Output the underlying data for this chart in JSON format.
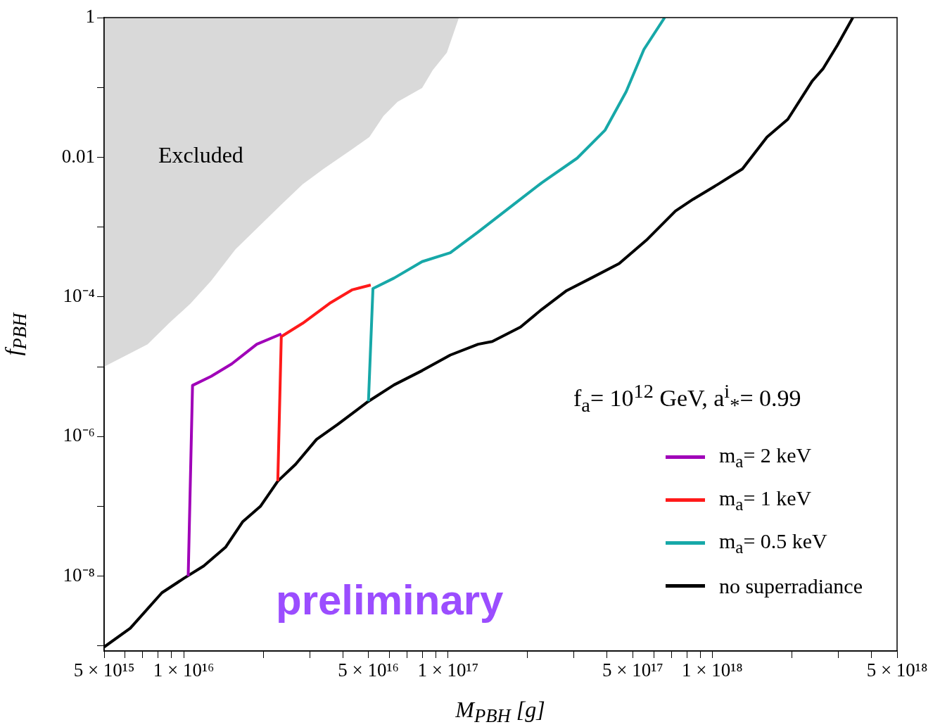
{
  "chart_data": {
    "type": "line",
    "xlabel": "M$_{PBH}$ [g]",
    "ylabel": "f$_{PBH}$",
    "log": "xy",
    "grid": false,
    "legend": "bottom right",
    "xlim": [
      5000000000000000.0,
      5e+18
    ],
    "ylim": [
      8.5e-10,
      1
    ],
    "xticks": [
      {
        "value": 5000000000000000.0,
        "label": "5 × 10¹⁵"
      },
      {
        "value": 6000000000000000.0,
        "label": null
      },
      {
        "value": 7000000000000000.0,
        "label": null
      },
      {
        "value": 8000000000000000.0,
        "label": null
      },
      {
        "value": 9000000000000000.0,
        "label": null
      },
      {
        "value": 1e+16,
        "label": "1 × 10¹⁶"
      },
      {
        "value": 2e+16,
        "label": null
      },
      {
        "value": 3e+16,
        "label": null
      },
      {
        "value": 4e+16,
        "label": null
      },
      {
        "value": 5e+16,
        "label": "5 × 10¹⁶"
      },
      {
        "value": 6e+16,
        "label": null
      },
      {
        "value": 7e+16,
        "label": null
      },
      {
        "value": 8e+16,
        "label": null
      },
      {
        "value": 9e+16,
        "label": null
      },
      {
        "value": 1e+17,
        "label": "1 × 10¹⁷"
      },
      {
        "value": 2e+17,
        "label": null
      },
      {
        "value": 3e+17,
        "label": null
      },
      {
        "value": 4e+17,
        "label": null
      },
      {
        "value": 5e+17,
        "label": "5 × 10¹⁷"
      },
      {
        "value": 6e+17,
        "label": null
      },
      {
        "value": 7e+17,
        "label": null
      },
      {
        "value": 8e+17,
        "label": null
      },
      {
        "value": 9e+17,
        "label": null
      },
      {
        "value": 1e+18,
        "label": "1 × 10¹⁸"
      },
      {
        "value": 2e+18,
        "label": null
      },
      {
        "value": 3e+18,
        "label": null
      },
      {
        "value": 4e+18,
        "label": null
      },
      {
        "value": 5e+18,
        "label": "5 × 10¹⁸"
      }
    ],
    "yticks": [
      {
        "value": 1e-09,
        "label": null
      },
      {
        "value": 1e-08,
        "label": "10⁻⁸"
      },
      {
        "value": 1e-07,
        "label": null
      },
      {
        "value": 1e-06,
        "label": "10⁻⁶"
      },
      {
        "value": 1e-05,
        "label": null
      },
      {
        "value": 0.0001,
        "label": "10⁻⁴"
      },
      {
        "value": 0.001,
        "label": null
      },
      0.01,
      {
        "value": 0.1,
        "label": null
      },
      1
    ],
    "annotations": [
      "Excluded",
      "f$_{a}$= 10$^{12}$ GeV, a$^{i}$$_{*}$= 0.99",
      "preliminary"
    ],
    "series": [
      {
        "type": "area",
        "color": "#d9d9d9",
        "x": [
          5000000000000000.0,
          5000000000000000.0,
          7300000000000000.0,
          8800000000000000.0,
          1.06e+16,
          1.27e+16,
          1.57e+16,
          1.95e+16,
          2.34e+16,
          2.82e+16,
          3.38e+16,
          4.33e+16,
          5.04e+16,
          5.7e+16,
          6.44e+16,
          7.98e+16,
          8.75e+16,
          9.9e+16,
          1.1e+17
        ],
        "values": [
          1,
          1e-05,
          2.1e-05,
          4.2e-05,
          8e-05,
          0.00017,
          0.00048,
          0.00107,
          0.0021,
          0.0041,
          0.0068,
          0.013,
          0.0195,
          0.039,
          0.062,
          0.098,
          0.176,
          0.315,
          1
        ]
      },
      {
        "name": "m$_{a}$= 2 keV",
        "color": "#a000b8",
        "x": [
          1.04e+16,
          1.08e+16,
          1.27e+16,
          1.52e+16,
          1.89e+16,
          2.34e+16
        ],
        "values": [
          1e-08,
          5.4e-06,
          7.3e-06,
          1.1e-05,
          2.1e-05,
          2.95e-05
        ]
      },
      {
        "name": "m$_{a}$= 1 keV",
        "color": "#ff1a1a",
        "x": [
          2.27e+16,
          2.34e+16,
          2.82e+16,
          3.6e+16,
          4.33e+16,
          5.1e+16
        ],
        "values": [
          2.3e-07,
          2.7e-05,
          4.2e-05,
          8.3e-05,
          0.000126,
          0.000148
        ]
      },
      {
        "name": "m$_{a}$= 0.5 keV",
        "color": "#17a8a8",
        "x": [
          5e+16,
          5.2e+16,
          6.25e+16,
          7.98e+16,
          1.02e+17,
          1.3e+17,
          1.77e+17,
          2.26e+17,
          3.08e+17,
          3.93e+17,
          4.72e+17,
          5.51e+17,
          6.6e+17
        ],
        "values": [
          3.2e-06,
          0.000132,
          0.000186,
          0.00032,
          0.00043,
          0.00085,
          0.0021,
          0.0043,
          0.0097,
          0.0245,
          0.087,
          0.35,
          1
        ]
      },
      {
        "name": "no superradiance",
        "color": "#000000",
        "x": [
          5000000000000000.0,
          6280000000000000.0,
          8270000000000000.0,
          1e+16,
          1.19e+16,
          1.44e+16,
          1.67e+16,
          1.95e+16,
          2.27e+16,
          2.65e+16,
          3.18e+16,
          3.83e+16,
          5e+16,
          6.25e+16,
          7.98e+16,
          1.02e+17,
          1.3e+17,
          1.47e+17,
          1.88e+17,
          2.26e+17,
          2.81e+17,
          3.48e+17,
          4.44e+17,
          5.68e+17,
          7.25e+17,
          8.45e+17,
          1.05e+18,
          1.3e+18,
          1.61e+18,
          1.93e+18,
          2.39e+18,
          2.62e+18,
          2.97e+18,
          3.4e+18
        ],
        "values": [
          9.7e-10,
          1.8e-09,
          5.8e-09,
          9.3e-09,
          1.4e-08,
          2.6e-08,
          6e-08,
          1e-07,
          2.3e-07,
          4e-07,
          9.1e-07,
          1.5e-06,
          3.2e-06,
          5.5e-06,
          8.8e-06,
          1.47e-05,
          2.1e-05,
          2.3e-05,
          3.7e-05,
          6.6e-05,
          0.000123,
          0.000186,
          0.0003,
          0.00067,
          0.0017,
          0.0025,
          0.0041,
          0.0068,
          0.0195,
          0.035,
          0.124,
          0.184,
          0.4,
          1
        ]
      }
    ]
  }
}
